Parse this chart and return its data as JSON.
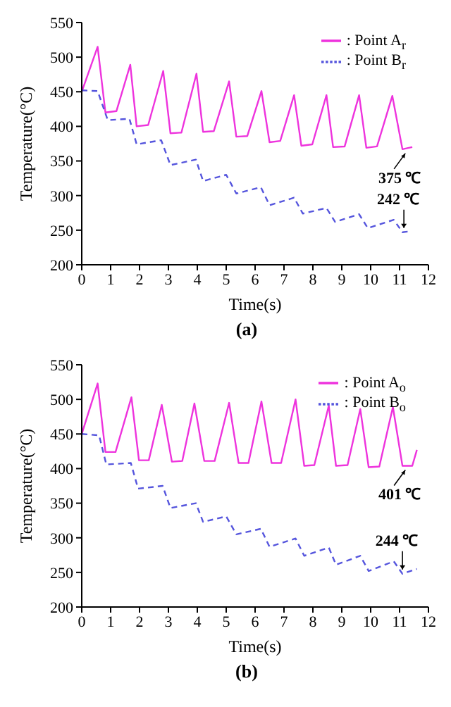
{
  "chart_data": [
    {
      "type": "line",
      "title": "(a)",
      "xlabel": "Time(s)",
      "ylabel": "Temperature(°C)",
      "xlim": [
        0,
        12
      ],
      "xticks": [
        0,
        1,
        2,
        3,
        4,
        5,
        6,
        7,
        8,
        9,
        10,
        11,
        12
      ],
      "ylim": [
        200,
        550
      ],
      "yticks": [
        200,
        250,
        300,
        350,
        400,
        450,
        500,
        550
      ],
      "grid": false,
      "legend": "top right",
      "marker": "none",
      "series": [
        {
          "name": ": Point A$_{r}$",
          "color": "#ee33dd",
          "line_style": "solid",
          "x": [
            0,
            0.55,
            0.82,
            1.2,
            1.68,
            1.9,
            2.3,
            2.82,
            3.07,
            3.45,
            3.97,
            4.2,
            4.57,
            5.1,
            5.35,
            5.73,
            6.22,
            6.5,
            6.87,
            7.35,
            7.6,
            7.98,
            8.47,
            8.7,
            9.1,
            9.6,
            9.85,
            10.22,
            10.75,
            11.1,
            11.44
          ],
          "values": [
            450,
            515,
            420,
            422,
            489,
            400,
            402,
            480,
            390,
            391,
            476,
            392,
            393,
            465,
            385,
            386,
            451,
            377,
            379,
            445,
            372,
            374,
            445,
            370,
            371,
            445,
            369,
            371,
            444,
            367,
            370
          ]
        },
        {
          "name": ": Point B$_{r}$",
          "color": "#5555dd",
          "line_style": "dashed",
          "x": [
            0,
            0.55,
            0.9,
            1.65,
            1.9,
            2.75,
            3.07,
            3.95,
            4.2,
            5.0,
            5.35,
            6.2,
            6.5,
            7.35,
            7.65,
            8.47,
            8.77,
            9.6,
            9.9,
            10.8,
            11.1,
            11.3
          ],
          "values": [
            452,
            451,
            409,
            411,
            374,
            380,
            344,
            352,
            321,
            330,
            303,
            312,
            286,
            297,
            274,
            282,
            262,
            273,
            253,
            265,
            247,
            248
          ]
        }
      ],
      "annotations": [
        {
          "text": "375 ℃",
          "x": 11.2,
          "y": 367
        },
        {
          "text": "242 ℃",
          "x": 11.15,
          "y": 247
        }
      ]
    },
    {
      "type": "line",
      "title": "(b)",
      "xlabel": "Time(s)",
      "ylabel": "Temperature(°C)",
      "xlim": [
        0,
        12
      ],
      "xticks": [
        0,
        1,
        2,
        3,
        4,
        5,
        6,
        7,
        8,
        9,
        10,
        11,
        12
      ],
      "ylim": [
        200,
        550
      ],
      "yticks": [
        200,
        250,
        300,
        350,
        400,
        450,
        500,
        550
      ],
      "grid": false,
      "legend": "top right",
      "marker": "none",
      "series": [
        {
          "name": ": Point A$_{o}$",
          "color": "#ee33dd",
          "line_style": "solid",
          "x": [
            0,
            0.55,
            0.82,
            1.17,
            1.72,
            1.98,
            2.32,
            2.77,
            3.12,
            3.48,
            3.9,
            4.24,
            4.6,
            5.1,
            5.43,
            5.77,
            6.22,
            6.57,
            6.9,
            7.4,
            7.7,
            8.05,
            8.55,
            8.8,
            9.2,
            9.64,
            9.93,
            10.3,
            10.77,
            11.1,
            11.44,
            11.6
          ],
          "values": [
            450,
            523,
            424,
            424,
            503,
            412,
            412,
            492,
            410,
            411,
            494,
            411,
            411,
            495,
            408,
            408,
            497,
            408,
            408,
            500,
            404,
            405,
            491,
            404,
            405,
            486,
            402,
            403,
            489,
            404,
            404,
            427
          ]
        },
        {
          "name": ": Point B$_{o}$",
          "color": "#5555dd",
          "line_style": "dashed",
          "x": [
            0,
            0.6,
            0.85,
            1.7,
            1.95,
            2.8,
            3.07,
            3.95,
            4.2,
            5.0,
            5.35,
            6.2,
            6.5,
            7.4,
            7.7,
            8.55,
            8.8,
            9.64,
            9.93,
            10.8,
            11.1,
            11.6
          ],
          "values": [
            450,
            448,
            406,
            408,
            371,
            375,
            343,
            350,
            323,
            331,
            305,
            313,
            287,
            299,
            274,
            286,
            261,
            274,
            252,
            266,
            248,
            255
          ]
        }
      ],
      "annotations": [
        {
          "text": "401 ℃",
          "x": 11.2,
          "y": 404
        },
        {
          "text": "244 ℃",
          "x": 11.1,
          "y": 248
        }
      ]
    }
  ]
}
